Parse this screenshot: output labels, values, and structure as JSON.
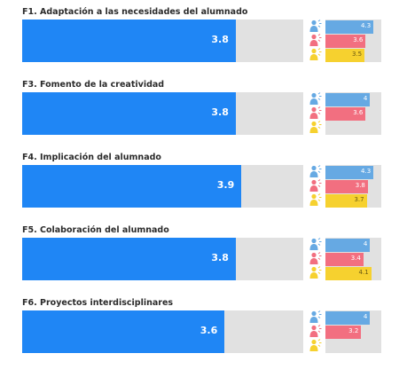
{
  "chart_data": {
    "type": "bar",
    "scale_max": 5,
    "colors": {
      "main": "#1f86f5",
      "track": "#e1e1e1",
      "group_1": "#66a9e3",
      "group_2": "#f26f80",
      "group_3": "#f6d12f"
    },
    "group_icons": [
      "person-blue-icon",
      "person-pink-icon",
      "person-yellow-icon"
    ],
    "panels": [
      {
        "title": "F1. Adaptación a las necesidades del alumnado",
        "value": 3.8,
        "value_label": "3.8",
        "groups": [
          {
            "value": 4.3,
            "label": "4.3"
          },
          {
            "value": 3.6,
            "label": "3.6"
          },
          {
            "value": 3.5,
            "label": "3.5"
          }
        ]
      },
      {
        "title": "F3. Fomento de la creatividad",
        "value": 3.8,
        "value_label": "3.8",
        "groups": [
          {
            "value": 4,
            "label": "4"
          },
          {
            "value": 3.6,
            "label": "3.6"
          },
          {
            "value": null,
            "label": ""
          }
        ]
      },
      {
        "title": "F4. Implicación del alumnado",
        "value": 3.9,
        "value_label": "3.9",
        "groups": [
          {
            "value": 4.3,
            "label": "4.3"
          },
          {
            "value": 3.8,
            "label": "3.8"
          },
          {
            "value": 3.7,
            "label": "3.7"
          }
        ]
      },
      {
        "title": "F5. Colaboración del alumnado",
        "value": 3.8,
        "value_label": "3.8",
        "groups": [
          {
            "value": 4,
            "label": "4"
          },
          {
            "value": 3.4,
            "label": "3.4"
          },
          {
            "value": 4.1,
            "label": "4.1"
          }
        ]
      },
      {
        "title": "F6. Proyectos interdisciplinares",
        "value": 3.6,
        "value_label": "3.6",
        "groups": [
          {
            "value": 4,
            "label": "4"
          },
          {
            "value": 3.2,
            "label": "3.2"
          },
          {
            "value": null,
            "label": ""
          }
        ]
      }
    ]
  }
}
